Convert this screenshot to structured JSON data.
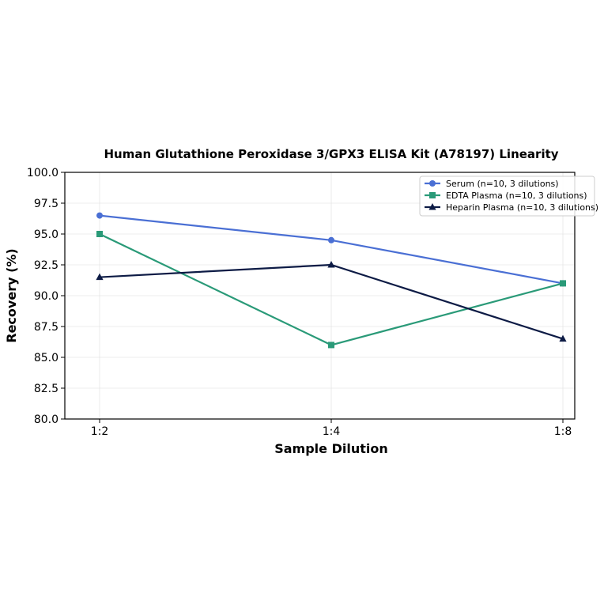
{
  "chart_data": {
    "type": "line",
    "title": "Human Glutathione Peroxidase 3/GPX3 ELISA Kit (A78197) Linearity",
    "xlabel": "Sample Dilution",
    "ylabel": "Recovery (%)",
    "categories": [
      "1:2",
      "1:4",
      "1:8"
    ],
    "ylim": [
      80.0,
      100.0
    ],
    "yticks": [
      "80.0",
      "82.5",
      "85.0",
      "87.5",
      "90.0",
      "92.5",
      "95.0",
      "97.5",
      "100.0"
    ],
    "grid": true,
    "legend_position": "top-right",
    "series": [
      {
        "name": "Serum (n=10, 3 dilutions)",
        "values": [
          96.5,
          94.5,
          91.0
        ],
        "color": "#4a6fd4",
        "marker": "circle"
      },
      {
        "name": "EDTA Plasma (n=10, 3 dilutions)",
        "values": [
          95.0,
          86.0,
          91.0
        ],
        "color": "#2a9a78",
        "marker": "square"
      },
      {
        "name": "Heparin Plasma (n=10, 3 dilutions)",
        "values": [
          91.5,
          92.5,
          86.5
        ],
        "color": "#0d1b45",
        "marker": "triangle"
      }
    ]
  }
}
